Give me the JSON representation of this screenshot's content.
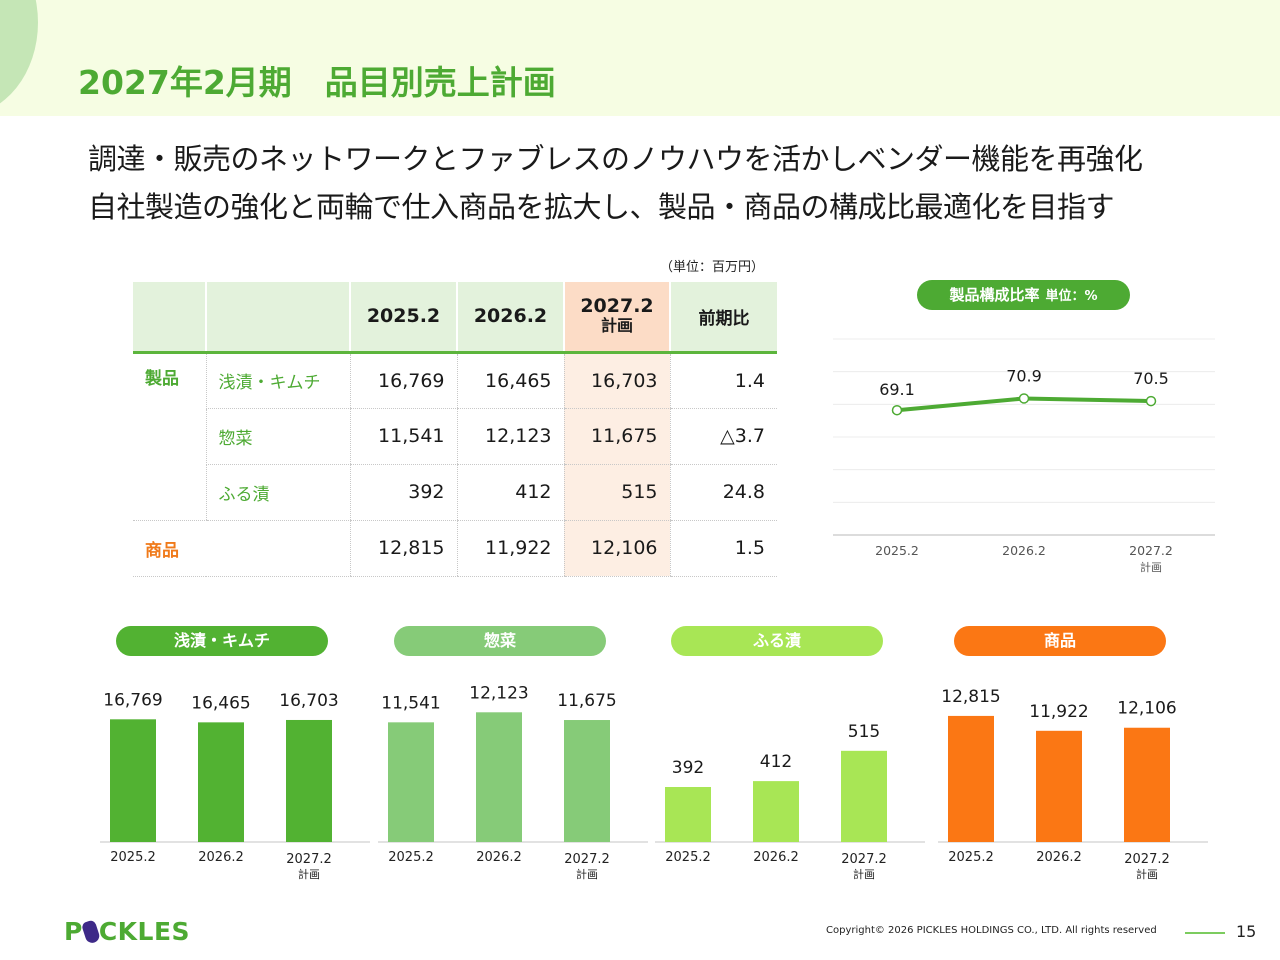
{
  "header": {
    "title": "2027年2月期　品目別売上計画"
  },
  "lead": [
    "調達・販売のネットワークとファブレスのノウハウを活かしベンダー機能を再強化",
    "自社製造の強化と両輪で仕入商品を拡大し、製品・商品の構成比最適化を目指す"
  ],
  "table": {
    "unit_note": "（単位：百万円）",
    "headers": [
      "",
      "",
      "2025.2",
      "2026.2",
      "2027.2",
      "前期比"
    ],
    "plan_sub": "計画",
    "rows": [
      {
        "category": "製品",
        "item": "浅漬・キムチ",
        "v2025": "16,769",
        "v2026": "16,465",
        "v2027": "16,703",
        "yoy": "1.4"
      },
      {
        "category": "",
        "item": "惣菜",
        "v2025": "11,541",
        "v2026": "12,123",
        "v2027": "11,675",
        "yoy": "△3.7"
      },
      {
        "category": "",
        "item": "ふる漬",
        "v2025": "392",
        "v2026": "412",
        "v2027": "515",
        "yoy": "24.8"
      },
      {
        "category": "商品",
        "item": "",
        "v2025": "12,815",
        "v2026": "11,922",
        "v2027": "12,106",
        "yoy": "1.5"
      }
    ]
  },
  "colors": {
    "brand_green": "#4daa33",
    "asazuke": "#52b232",
    "sozai": "#86cb78",
    "furuzuke": "#a8e655",
    "goods": "#fb7714",
    "header_bg": "#f6fde3",
    "plan_bg": "#fcdcc6"
  },
  "chart_data": [
    {
      "type": "line",
      "title": "製品構成比率",
      "unit": "単位：%",
      "categories": [
        "2025.2",
        "2026.2",
        "2027.2"
      ],
      "category_sub": [
        "",
        "",
        "計画"
      ],
      "values": [
        69.1,
        70.9,
        70.5
      ],
      "labels": [
        "69.1",
        "70.9",
        "70.5"
      ],
      "ylim": [
        50,
        80
      ],
      "grid": true,
      "color": "#4daa33"
    },
    {
      "type": "bar",
      "title": "浅漬・キムチ",
      "categories": [
        "2025.2",
        "2026.2",
        "2027.2"
      ],
      "category_sub": [
        "",
        "",
        "計画"
      ],
      "values": [
        16769,
        16465,
        16703
      ],
      "labels": [
        "16,769",
        "16,465",
        "16,703"
      ],
      "ylim": [
        4500,
        19500
      ],
      "color": "#52b232"
    },
    {
      "type": "bar",
      "title": "惣菜",
      "categories": [
        "2025.2",
        "2026.2",
        "2027.2"
      ],
      "category_sub": [
        "",
        "",
        "計画"
      ],
      "values": [
        11541,
        12123,
        11675
      ],
      "labels": [
        "11,541",
        "12,123",
        "11,675"
      ],
      "ylim": [
        4600,
        13300
      ],
      "color": "#86cb78"
    },
    {
      "type": "bar",
      "title": "ふる漬",
      "categories": [
        "2025.2",
        "2026.2",
        "2027.2"
      ],
      "category_sub": [
        "",
        "",
        "計画"
      ],
      "values": [
        392,
        412,
        515
      ],
      "labels": [
        "392",
        "412",
        "515"
      ],
      "ylim": [
        205,
        715
      ],
      "color": "#a8e655"
    },
    {
      "type": "bar",
      "title": "商品",
      "categories": [
        "2025.2",
        "2026.2",
        "2027.2"
      ],
      "category_sub": [
        "",
        "",
        "計画"
      ],
      "values": [
        12815,
        11922,
        12106
      ],
      "labels": [
        "12,815",
        "11,922",
        "12,106"
      ],
      "ylim": [
        5250,
        14250
      ],
      "color": "#fb7714"
    }
  ],
  "footer": {
    "logo_left": "P",
    "logo_right": "CKLES",
    "copyright": "Copyright© 2026 PICKLES HOLDINGS CO., LTD. All rights reserved",
    "page": "15"
  }
}
